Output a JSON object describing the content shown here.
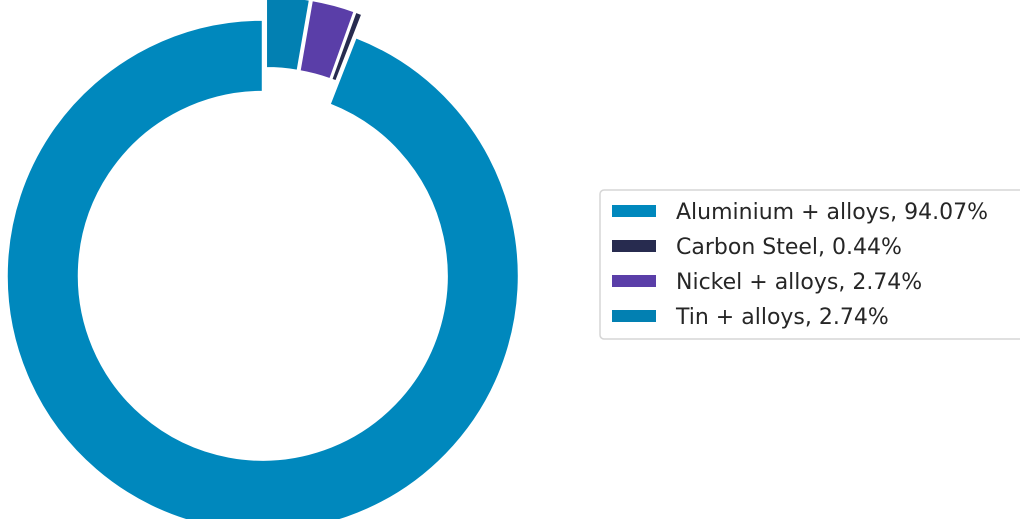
{
  "chart_data": {
    "type": "pie",
    "variant": "donut",
    "title": "",
    "categories": [
      "Aluminium + alloys",
      "Carbon Steel",
      "Nickel + alloys",
      "Tin + alloys"
    ],
    "values": [
      94.07,
      0.44,
      2.74,
      2.74
    ],
    "colors": [
      "#0088bd",
      "#272b4f",
      "#5a3ea8",
      "#0280b2"
    ],
    "legend": {
      "position": "right",
      "entries": [
        "Aluminium + alloys, 94.07%",
        "Carbon Steel, 0.44%",
        "Nickel + alloys, 2.74%",
        "Tin + alloys, 2.74%"
      ]
    },
    "start_angle_deg": 90,
    "direction": "counterclockwise"
  }
}
